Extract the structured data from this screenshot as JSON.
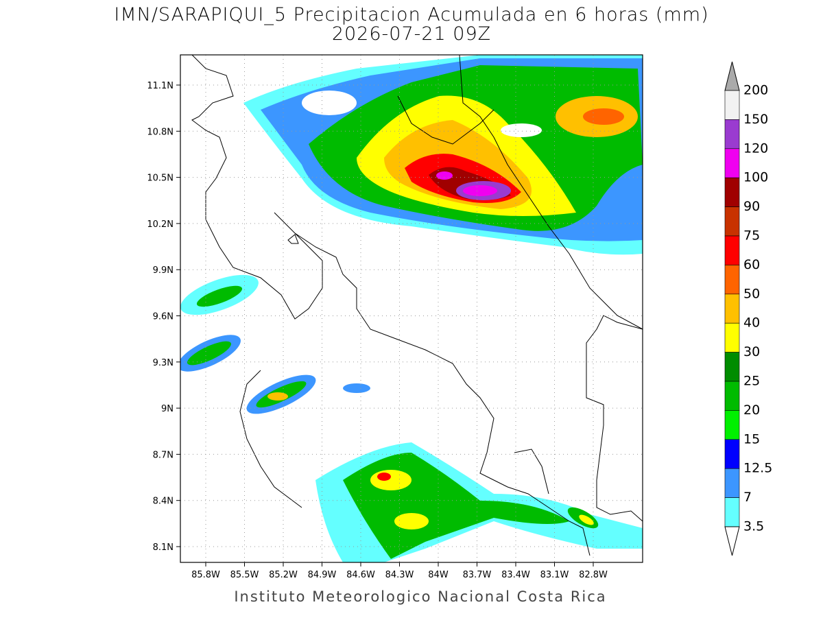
{
  "title": "IMN/SARAPIQUI_5 Precipitacion Acumulada en 6 horas (mm)",
  "subtitle": "2026-07-21 09Z",
  "footer": "Instituto Meteorologico Nacional Costa Rica",
  "lon_labels": [
    "85.8W",
    "85.5W",
    "85.2W",
    "84.9W",
    "84.6W",
    "84.3W",
    "84W",
    "83.7W",
    "83.4W",
    "83.1W",
    "82.8W"
  ],
  "lat_labels": [
    "11.1N",
    "10.8N",
    "10.5N",
    "10.2N",
    "9.9N",
    "9.6N",
    "9.3N",
    "9N",
    "8.7N",
    "8.4N",
    "8.1N"
  ],
  "colorbar": {
    "levels": [
      200,
      150,
      120,
      100,
      90,
      75,
      60,
      50,
      40,
      30,
      25,
      20,
      15,
      12.5,
      7,
      3.5
    ],
    "colors": [
      "#f2f2f2",
      "#9a3bd0",
      "#f000f0",
      "#a00000",
      "#c83200",
      "#ff0000",
      "#ff6400",
      "#ffc000",
      "#ffff00",
      "#008c00",
      "#00bb00",
      "#00f000",
      "#0000ff",
      "#3c96ff",
      "#64ffff"
    ],
    "over_color": "#aaaaaa",
    "under_color": "#ffffff"
  }
}
